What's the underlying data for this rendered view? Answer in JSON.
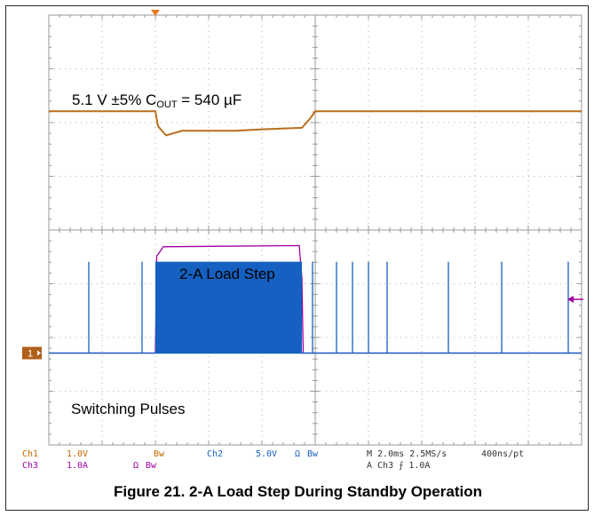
{
  "caption": "Figure 21. 2-A Load Step During Standby Operation",
  "annotations": {
    "voltage_prefix": "5.1 V ±5% C",
    "voltage_sub": "OUT",
    "voltage_suffix": " = 540 µF",
    "load_step": "2-A Load Step",
    "switching": "Switching Pulses"
  },
  "channel_marker": "1",
  "status": {
    "ch1_label": "Ch1",
    "ch1_scale": "1.0V",
    "ch1_bw": "Bw",
    "ch2_label": "Ch2",
    "ch2_scale": "5.0V",
    "ch2_ohm": "Ω",
    "ch2_bw": "Bw",
    "ch3_label": "Ch3",
    "ch3_scale": "1.0A",
    "ch3_ohm": "Ω",
    "ch3_bw": "Bw",
    "timebase": "M 2.0ms 2.5MS/s",
    "record": "400ns/pt",
    "trigger": "A  Ch3  ⨍  1.0A"
  },
  "colors": {
    "ch1": "#b86e1c",
    "ch2": "#1560c0",
    "ch3": "#a000a0",
    "grid": "#9a9a9a",
    "trigger_marker": "#f07820",
    "ch1_marker": "#b0601a"
  },
  "chart_data": {
    "type": "line",
    "title": "",
    "xlabel": "",
    "ylabel": "",
    "divisions": {
      "x": 10,
      "y": 8
    },
    "x_unit": "ms",
    "x_per_div": 2.0,
    "xlim": [
      0,
      20
    ],
    "grid": true,
    "series": [
      {
        "name": "Ch1",
        "unit": "V",
        "per_div": 1.0,
        "x": [
          0,
          4.0,
          4.1,
          4.4,
          5.0,
          6.0,
          7.0,
          8.0,
          9.5,
          9.8,
          10.0,
          20.0
        ],
        "y": [
          5.1,
          5.1,
          5.0,
          4.94,
          4.97,
          4.97,
          4.97,
          4.98,
          4.99,
          5.05,
          5.1,
          5.1
        ]
      },
      {
        "name": "Ch3",
        "unit": "A",
        "per_div": 1.0,
        "x": [
          0,
          4.0,
          4.05,
          4.3,
          9.4,
          9.5,
          9.55,
          20.0
        ],
        "y": [
          0,
          0,
          1.8,
          1.98,
          2.0,
          1.4,
          0,
          0
        ]
      },
      {
        "name": "Ch2",
        "unit": "V",
        "per_div": 5.0,
        "burst": {
          "start": 4.0,
          "end": 9.5,
          "high": 8.5,
          "low": 0
        },
        "pulses_x": [
          1.5,
          3.5,
          9.9,
          10.8,
          11.4,
          12.0,
          12.7,
          15.0,
          17.0,
          19.5
        ],
        "pulse_high": 8.5
      }
    ]
  }
}
